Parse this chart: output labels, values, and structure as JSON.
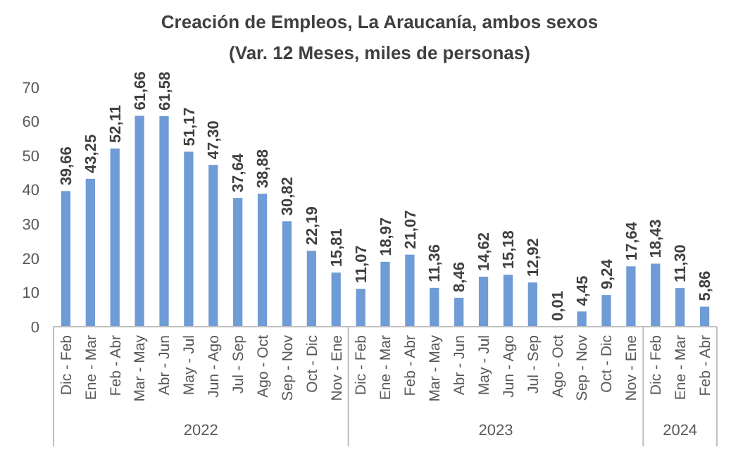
{
  "chart_data": {
    "type": "bar",
    "title": "Creación de Empleos, La Araucanía, ambos sexos",
    "subtitle": "(Var. 12 Meses, miles de personas)",
    "categories": [
      "Dic - Feb",
      "Ene - Mar",
      "Feb - Abr",
      "Mar - May",
      "Abr - Jun",
      "May - Jul",
      "Jun - Ago",
      "Jul - Sep",
      "Ago - Oct",
      "Sep - Nov",
      "Oct - Dic",
      "Nov - Ene",
      "Dic - Feb",
      "Ene - Mar",
      "Feb - Abr",
      "Mar - May",
      "Abr - Jun",
      "May - Jul",
      "Jun - Ago",
      "Jul - Sep",
      "Ago - Oct",
      "Sep - Nov",
      "Oct - Dic",
      "Nov - Ene",
      "Dic - Feb",
      "Ene - Mar",
      "Feb - Abr"
    ],
    "values": [
      39.66,
      43.25,
      52.11,
      61.66,
      61.58,
      51.17,
      47.3,
      37.64,
      38.88,
      30.82,
      22.19,
      15.81,
      11.07,
      18.97,
      21.07,
      11.36,
      8.46,
      14.62,
      15.18,
      12.92,
      0.01,
      4.45,
      9.24,
      17.64,
      18.43,
      11.3,
      5.86
    ],
    "value_labels": [
      "39,66",
      "43,25",
      "52,11",
      "61,66",
      "61,58",
      "51,17",
      "47,30",
      "37,64",
      "38,88",
      "30,82",
      "22,19",
      "15,81",
      "11,07",
      "18,97",
      "21,07",
      "11,36",
      "8,46",
      "14,62",
      "15,18",
      "12,92",
      "0,01",
      "4,45",
      "9,24",
      "17,64",
      "18,43",
      "11,30",
      "5,86"
    ],
    "color": "#6f9bd6",
    "ylim": [
      0,
      70
    ],
    "yticks": [
      0,
      10,
      20,
      30,
      40,
      50,
      60,
      70
    ],
    "grid": false,
    "annotations": [
      "2022",
      "2023",
      "2024"
    ]
  }
}
